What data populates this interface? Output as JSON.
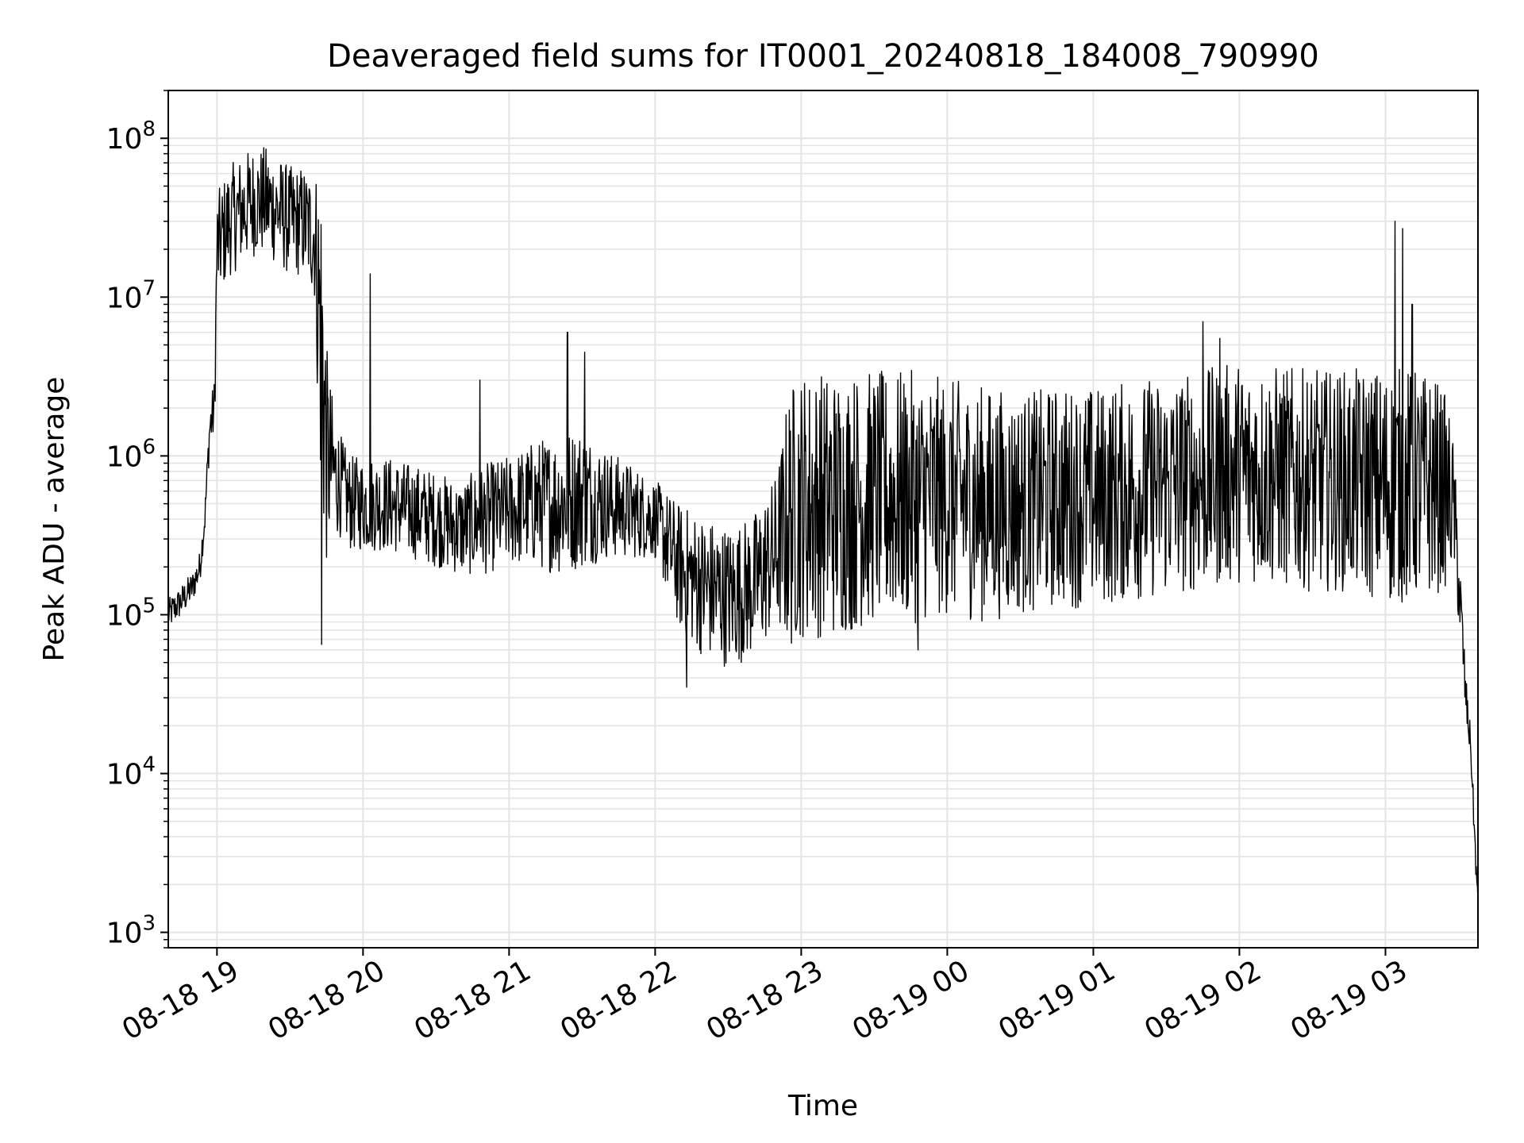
{
  "chart_data": {
    "type": "line",
    "title": "Deaveraged field sums for IT0001_20240818_184008_790990",
    "xlabel": "Time",
    "ylabel": "Peak ADU - average",
    "yscale": "log",
    "xlim": [
      "2024-08-18 18:40",
      "2024-08-19 03:38"
    ],
    "ylim": [
      800,
      200000000
    ],
    "x_ticks": [
      "08-18 19",
      "08-18 20",
      "08-18 21",
      "08-18 22",
      "08-18 23",
      "08-19 00",
      "08-19 01",
      "08-19 02",
      "08-19 03"
    ],
    "y_ticks": [
      {
        "value": 1000,
        "base": "10",
        "exp": "3"
      },
      {
        "value": 10000,
        "base": "10",
        "exp": "4"
      },
      {
        "value": 100000,
        "base": "10",
        "exp": "5"
      },
      {
        "value": 1000000,
        "base": "10",
        "exp": "6"
      },
      {
        "value": 10000000,
        "base": "10",
        "exp": "7"
      },
      {
        "value": 100000000,
        "base": "10",
        "exp": "8"
      }
    ],
    "grid": true,
    "line_color": "#000000",
    "series": [
      {
        "x": [
          "2024-08-18 18:40",
          "2024-08-18 18:45",
          "2024-08-18 18:50",
          "2024-08-18 18:53",
          "2024-08-18 18:55",
          "2024-08-18 18:57",
          "2024-08-18 18:59",
          "2024-08-18 19:00",
          "2024-08-18 19:05",
          "2024-08-18 19:10",
          "2024-08-18 19:15",
          "2024-08-18 19:20",
          "2024-08-18 19:25",
          "2024-08-18 19:30",
          "2024-08-18 19:35",
          "2024-08-18 19:40",
          "2024-08-18 19:43",
          "2024-08-18 19:45",
          "2024-08-18 19:48",
          "2024-08-18 19:52",
          "2024-08-18 19:55",
          "2024-08-18 20:00",
          "2024-08-18 20:10",
          "2024-08-18 20:20",
          "2024-08-18 20:30",
          "2024-08-18 20:40",
          "2024-08-18 20:50",
          "2024-08-18 21:00",
          "2024-08-18 21:10",
          "2024-08-18 21:20",
          "2024-08-18 21:30",
          "2024-08-18 21:40",
          "2024-08-18 21:50",
          "2024-08-18 22:00",
          "2024-08-18 22:10",
          "2024-08-18 22:20",
          "2024-08-18 22:30",
          "2024-08-18 22:40",
          "2024-08-18 22:50",
          "2024-08-18 22:55",
          "2024-08-18 23:00",
          "2024-08-18 23:15",
          "2024-08-18 23:30",
          "2024-08-18 23:45",
          "2024-08-19 00:00",
          "2024-08-19 00:15",
          "2024-08-19 00:30",
          "2024-08-19 00:45",
          "2024-08-19 01:00",
          "2024-08-19 01:15",
          "2024-08-19 01:30",
          "2024-08-19 01:45",
          "2024-08-19 02:00",
          "2024-08-19 02:15",
          "2024-08-19 02:30",
          "2024-08-19 02:45",
          "2024-08-19 03:00",
          "2024-08-19 03:10",
          "2024-08-19 03:20",
          "2024-08-19 03:25",
          "2024-08-19 03:28",
          "2024-08-19 03:31",
          "2024-08-19 03:33",
          "2024-08-19 03:35",
          "2024-08-19 03:37",
          "2024-08-19 03:38"
        ],
        "y": [
          100000,
          120000,
          150000,
          200000,
          400000,
          1500000,
          2000000,
          20000000,
          30000000,
          35000000,
          40000000,
          40000000,
          35000000,
          30000000,
          30000000,
          25000000,
          5000000,
          1000000,
          800000,
          600000,
          500000,
          500000,
          500000,
          450000,
          400000,
          350000,
          400000,
          450000,
          500000,
          500000,
          550000,
          500000,
          450000,
          400000,
          200000,
          150000,
          130000,
          150000,
          250000,
          400000,
          500000,
          500000,
          550000,
          550000,
          550000,
          500000,
          500000,
          550000,
          550000,
          600000,
          650000,
          700000,
          800000,
          750000,
          700000,
          700000,
          650000,
          650000,
          650000,
          600000,
          500000,
          100000,
          30000,
          15000,
          3000,
          1500
        ],
        "noise_amplitude_decades": [
          0.1,
          0.1,
          0.1,
          0.1,
          0.1,
          0.15,
          0.2,
          0.35,
          0.35,
          0.35,
          0.35,
          0.35,
          0.35,
          0.35,
          0.35,
          0.4,
          1.2,
          0.7,
          0.4,
          0.3,
          0.3,
          0.3,
          0.3,
          0.3,
          0.3,
          0.3,
          0.35,
          0.35,
          0.4,
          0.45,
          0.45,
          0.35,
          0.3,
          0.25,
          0.4,
          0.45,
          0.45,
          0.45,
          0.5,
          0.85,
          0.85,
          0.85,
          0.8,
          0.8,
          0.75,
          0.75,
          0.7,
          0.7,
          0.7,
          0.7,
          0.7,
          0.7,
          0.7,
          0.7,
          0.7,
          0.7,
          0.75,
          0.75,
          0.7,
          0.6,
          0.4,
          0.25,
          0.15,
          0.1,
          0.1,
          0.05
        ]
      }
    ],
    "spikes": [
      {
        "x": "2024-08-18 19:43",
        "y": 65000
      },
      {
        "x": "2024-08-18 20:03",
        "y": 14000000
      },
      {
        "x": "2024-08-18 20:48",
        "y": 3000000
      },
      {
        "x": "2024-08-18 21:24",
        "y": 6000000
      },
      {
        "x": "2024-08-18 21:31",
        "y": 4500000
      },
      {
        "x": "2024-08-18 22:13",
        "y": 35000
      },
      {
        "x": "2024-08-18 23:48",
        "y": 60000
      },
      {
        "x": "2024-08-19 01:45",
        "y": 7000000
      },
      {
        "x": "2024-08-19 01:52",
        "y": 5500000
      },
      {
        "x": "2024-08-19 02:04",
        "y": 2500000
      },
      {
        "x": "2024-08-19 03:04",
        "y": 30000000
      },
      {
        "x": "2024-08-19 03:07",
        "y": 27000000
      },
      {
        "x": "2024-08-19 03:11",
        "y": 9000000
      }
    ]
  }
}
